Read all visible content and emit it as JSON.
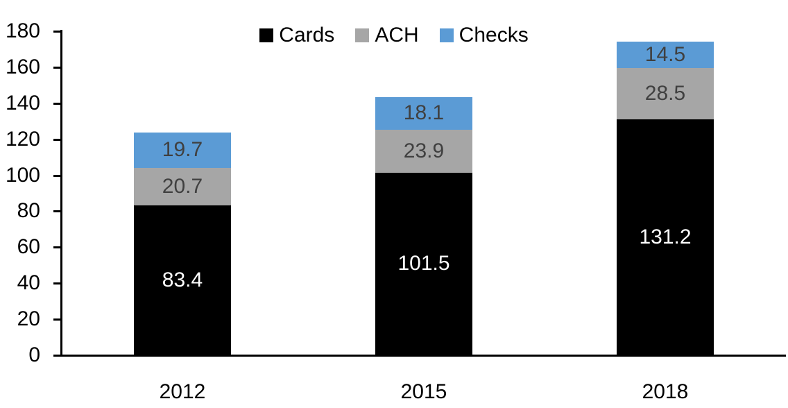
{
  "chart_data": {
    "type": "bar",
    "stacked": true,
    "title": "",
    "xlabel": "",
    "ylabel": "",
    "categories": [
      "2012",
      "2015",
      "2018"
    ],
    "series": [
      {
        "name": "Cards",
        "color": "#000000",
        "label_color": "#ffffff",
        "values": [
          83.4,
          101.5,
          131.2
        ]
      },
      {
        "name": "ACH",
        "color": "#a6a6a6",
        "label_color": "#404040",
        "values": [
          20.7,
          23.9,
          28.5
        ]
      },
      {
        "name": "Checks",
        "color": "#5b9bd5",
        "label_color": "#404040",
        "values": [
          19.7,
          18.1,
          14.5
        ]
      }
    ],
    "totals": [
      123.8,
      143.5,
      174.2
    ],
    "ylim": [
      0,
      180
    ],
    "ytick_step": 20,
    "yticks": [
      0,
      20,
      40,
      60,
      80,
      100,
      120,
      140,
      160,
      180
    ],
    "legend_position": "top-center",
    "legend_labels": [
      "Cards",
      "ACH",
      "Checks"
    ],
    "grid": false,
    "axis_color": "#000000",
    "background_color": "#ffffff"
  }
}
